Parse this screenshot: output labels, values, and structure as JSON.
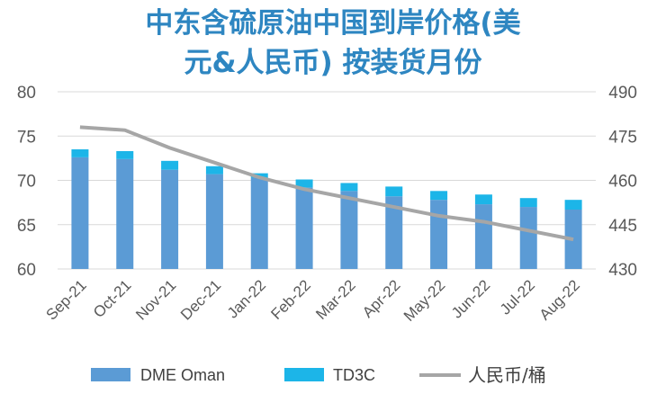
{
  "chart_data": {
    "type": "bar",
    "title_line1": "中东含硫原油中国到岸价格(美",
    "title_line2": "元&人民币) 按装货月份",
    "categories": [
      "Sep-21",
      "Oct-21",
      "Nov-21",
      "Dec-21",
      "Jan-22",
      "Feb-22",
      "Mar-22",
      "Apr-22",
      "May-22",
      "Jun-22",
      "Jul-22",
      "Aug-22"
    ],
    "y_left": {
      "min": 60,
      "max": 80,
      "ticks": [
        "60",
        "65",
        "70",
        "75",
        "80"
      ]
    },
    "y_right": {
      "min": 430,
      "max": 490,
      "ticks": [
        "430",
        "445",
        "460",
        "475",
        "490"
      ]
    },
    "series": [
      {
        "name": "DME Oman",
        "kind": "bar",
        "axis": "left",
        "color": "#5B9BD5",
        "values": [
          72.6,
          72.4,
          71.2,
          70.7,
          70.3,
          69.2,
          68.8,
          68.2,
          67.8,
          67.3,
          67.0,
          66.7
        ]
      },
      {
        "name": "TD3C",
        "kind": "bar_stack",
        "axis": "left",
        "color": "#1CB5E8",
        "values": [
          0.9,
          0.9,
          1.0,
          0.9,
          0.5,
          0.9,
          0.9,
          1.1,
          1.0,
          1.1,
          1.0,
          1.1
        ]
      },
      {
        "name": "人民币/桶",
        "kind": "line",
        "axis": "right",
        "color": "#A6A6A6",
        "values": [
          478,
          477,
          471,
          466,
          461,
          457,
          454,
          451,
          448,
          446,
          443,
          440
        ]
      }
    ],
    "legend_position": "bottom",
    "grid": "horizontal"
  }
}
